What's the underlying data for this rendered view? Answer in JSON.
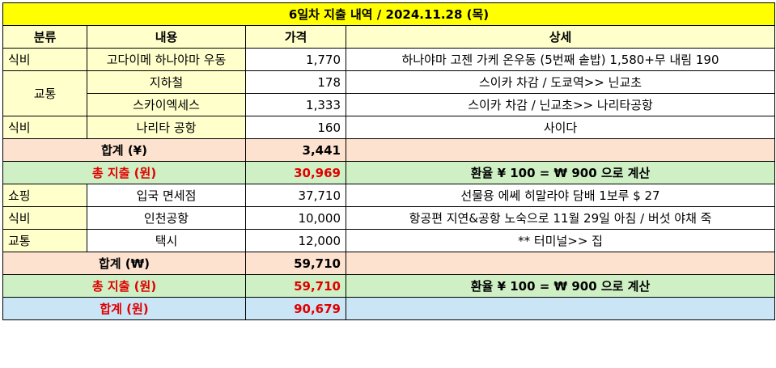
{
  "title": "6일차 지출 내역 / 2024.11.28 (목)",
  "headers": {
    "category": "분류",
    "content": "내용",
    "price": "가격",
    "detail": "상세"
  },
  "section1": {
    "rows": [
      {
        "category": "식비",
        "content": "고다이메 하나야마 우동",
        "price": "1,770",
        "detail": "하나야마 고젠 가케 온우동 (5번째 솥밥) 1,580+무 내림 190"
      },
      {
        "category": "교통",
        "content": "지하철",
        "price": "178",
        "detail": "스이카 차감 / 도쿄역>> 닌교초"
      },
      {
        "content": "스카이엑세스",
        "price": "1,333",
        "detail": "스이카 차감 / 닌교초>> 나리타공항"
      },
      {
        "category": "식비",
        "content": "나리타 공항",
        "price": "160",
        "detail": "사이다"
      }
    ],
    "subtotal_label": "합계  (¥)",
    "subtotal_value": "3,441",
    "total_label": "총 지출 (원)",
    "total_value": "30,969",
    "rate_note": "환율  ¥ 100 = ₩ 900 으로 계산"
  },
  "section2": {
    "rows": [
      {
        "category": "쇼핑",
        "content": "입국 면세점",
        "price": "37,710",
        "detail": "선물용 에쎄 히말라야 담배 1보루  $ 27"
      },
      {
        "category": "식비",
        "content": "인천공항",
        "price": "10,000",
        "detail": "항공편 지연&공항 노숙으로 11월 29일 아침 / 버섯 야채 죽"
      },
      {
        "category": "교통",
        "content": "택시",
        "price": "12,000",
        "detail": "** 터미널>> 집"
      }
    ],
    "subtotal_label": "합계 (₩)",
    "subtotal_value": "59,710",
    "total_label": "총 지출 (원)",
    "total_value": "59,710",
    "rate_note": "환율  ¥ 100 = ₩ 900 으로 계산"
  },
  "grand_total": {
    "label": "합계 (원)",
    "value": "90,679"
  },
  "colors": {
    "title_bg": "#ffff00",
    "title_text": "#1f4fd8",
    "header_bg": "#ffffcc",
    "subtotal_bg": "#fde2cf",
    "total_bg": "#cff0c4",
    "grand_bg": "#c9e5f6",
    "red": "#e00000"
  }
}
